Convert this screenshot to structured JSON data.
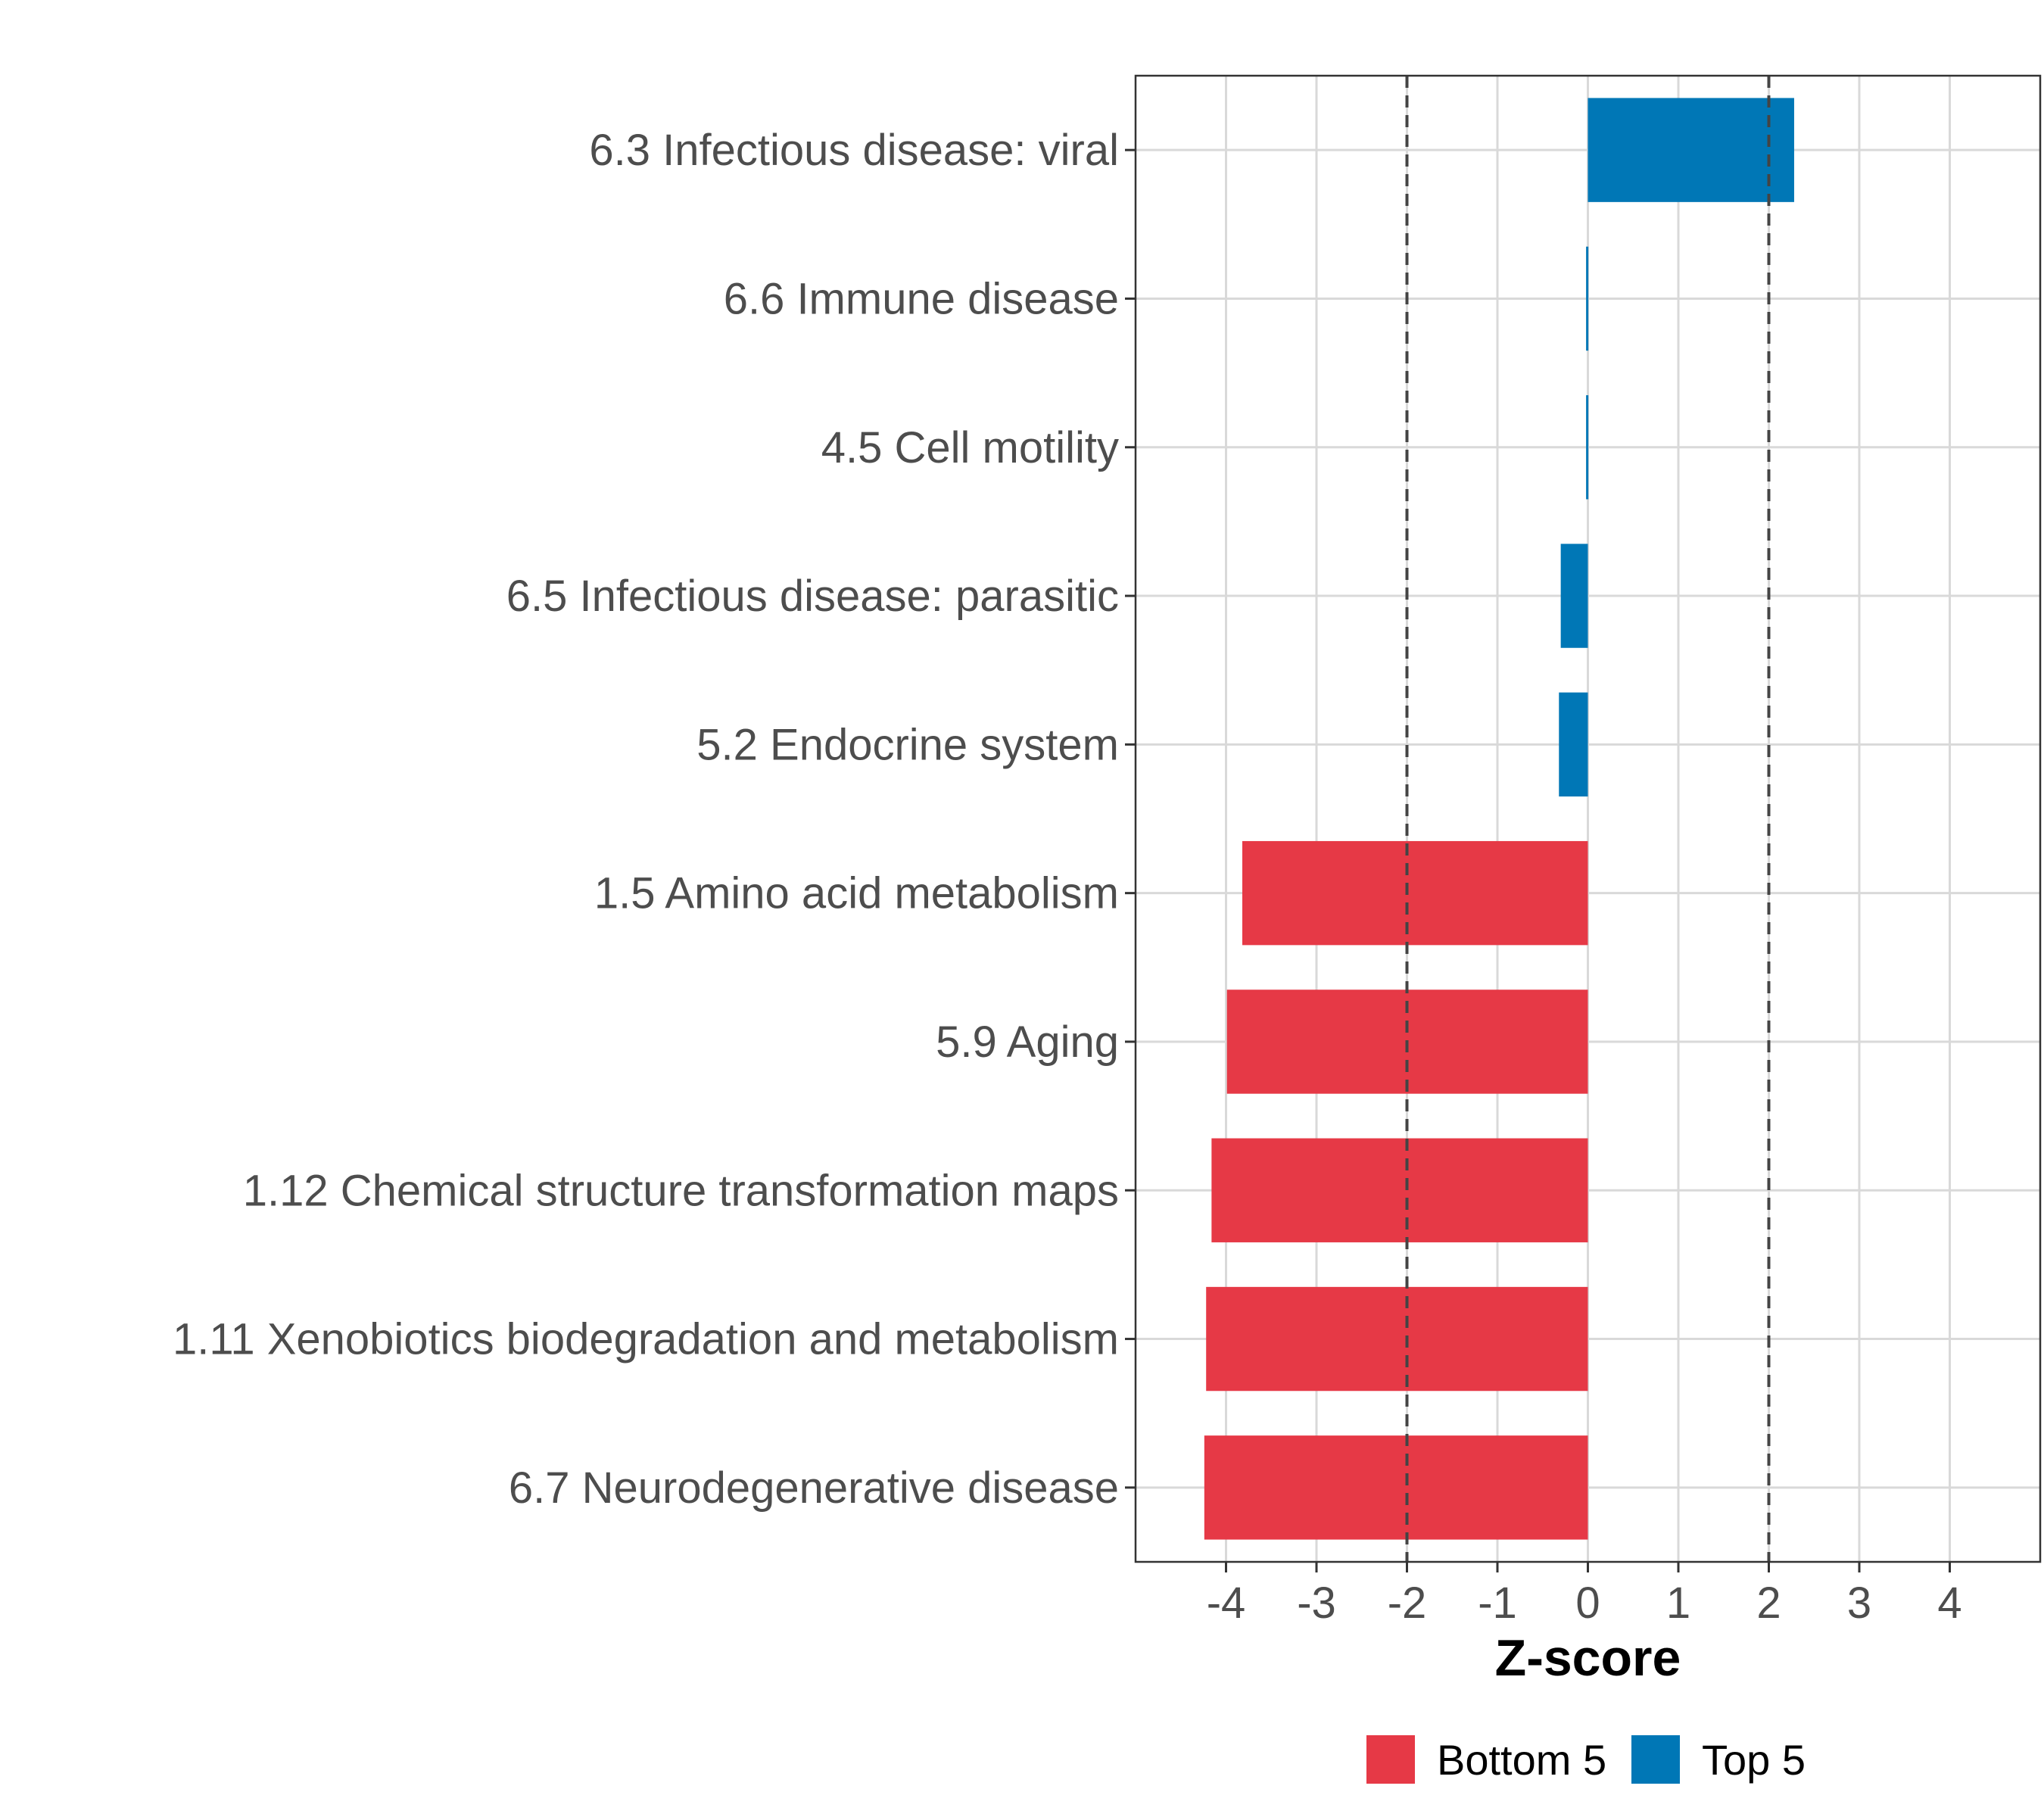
{
  "chart_data": {
    "type": "bar",
    "orientation": "horizontal",
    "categories": [
      "6.3 Infectious disease: viral",
      "6.6 Immune disease",
      "4.5 Cell motility",
      "6.5 Infectious disease: parasitic",
      "5.2 Endocrine system",
      "1.5 Amino acid metabolism",
      "5.9 Aging",
      "1.12 Chemical structure transformation maps",
      "1.11 Xenobiotics biodegradation and metabolism",
      "6.7 Neurodegenerative disease"
    ],
    "values": [
      2.28,
      -0.02,
      -0.02,
      -0.3,
      -0.32,
      -3.82,
      -3.99,
      -4.16,
      -4.22,
      -4.24
    ],
    "groups": [
      "Top 5",
      "Top 5",
      "Top 5",
      "Top 5",
      "Top 5",
      "Bottom 5",
      "Bottom 5",
      "Bottom 5",
      "Bottom 5",
      "Bottom 5"
    ],
    "xlabel": "Z-score",
    "ylabel": "",
    "xlim": [
      -5,
      5
    ],
    "xticks": [
      -4,
      -3,
      -2,
      -1,
      0,
      1,
      2,
      3,
      4
    ],
    "xtick_labels": [
      "-4",
      "-3",
      "-2",
      "-1",
      "0",
      "1",
      "2",
      "3",
      "4"
    ],
    "reference_lines": [
      -2,
      2
    ],
    "grid": true,
    "legend": {
      "position": "bottom",
      "entries": [
        {
          "label": "Bottom 5",
          "color": "#E63946"
        },
        {
          "label": "Top 5",
          "color": "#0077B6"
        }
      ]
    },
    "colors": {
      "Top 5": "#0077B6",
      "Bottom 5": "#E63946"
    }
  }
}
